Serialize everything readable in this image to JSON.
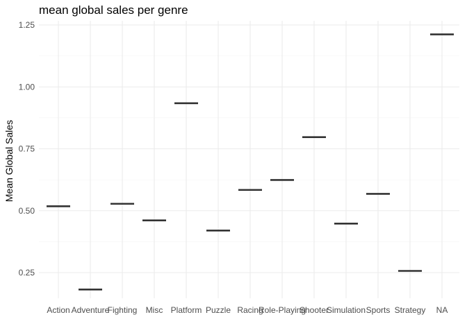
{
  "chart_data": {
    "type": "boxplot",
    "title": "mean global sales per genre",
    "xlabel": "",
    "ylabel": "Mean Global Sales",
    "categories": [
      "Action",
      "Adventure",
      "Fighting",
      "Misc",
      "Platform",
      "Puzzle",
      "Racing",
      "Role-Playing",
      "Shooter",
      "Simulation",
      "Sports",
      "Strategy",
      "NA"
    ],
    "values": [
      0.518,
      0.182,
      0.528,
      0.461,
      0.934,
      0.42,
      0.584,
      0.624,
      0.797,
      0.448,
      0.568,
      0.257,
      1.212
    ],
    "yticks": [
      "0.25",
      "0.50",
      "0.75",
      "1.00",
      "1.25"
    ],
    "ylim": [
      0.12,
      1.28
    ],
    "grid": true,
    "legend": "none",
    "mark_color": "#333333"
  }
}
